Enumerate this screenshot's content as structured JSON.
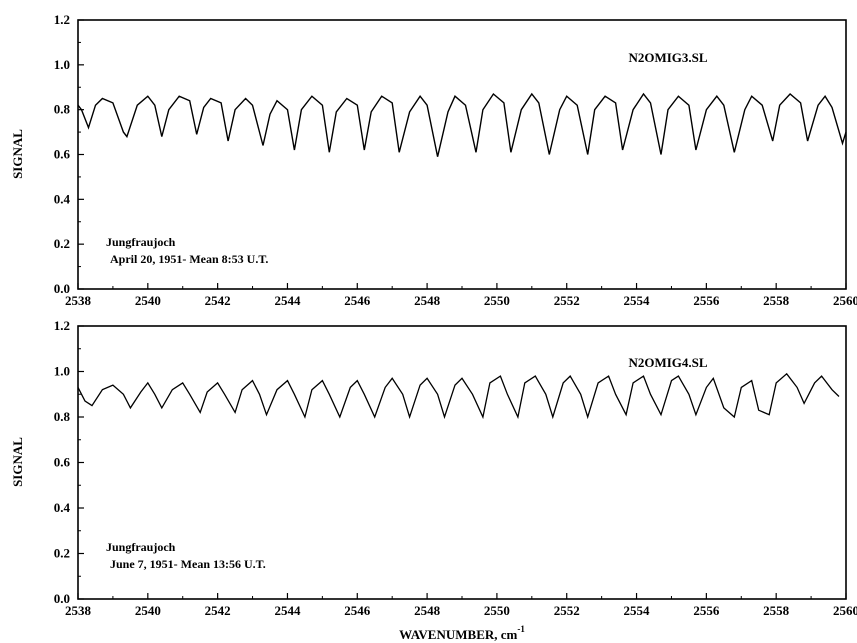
{
  "chart_data": [
    {
      "type": "line",
      "title": "",
      "xlabel": "",
      "ylabel": "SIGNAL",
      "xlim": [
        2538,
        2560
      ],
      "ylim": [
        0.0,
        1.2
      ],
      "x_ticks": [
        "2538",
        "2540",
        "2542",
        "2544",
        "2546",
        "2548",
        "2550",
        "2552",
        "2554",
        "2556",
        "2558",
        "2560"
      ],
      "y_ticks": [
        "0.0",
        "0.2",
        "0.4",
        "0.6",
        "0.8",
        "1.0",
        "1.2"
      ],
      "grid": false,
      "series_label": "N2OMIG3.SL",
      "annotation": [
        "Jungfraujoch",
        "April 20, 1951- Mean 8:53 U.T."
      ],
      "series": [
        {
          "x": [
            2538.0,
            2538.1,
            2538.3,
            2538.5,
            2538.7,
            2539.0,
            2539.3,
            2539.4,
            2539.7,
            2540.0,
            2540.2,
            2540.4,
            2540.6,
            2540.9,
            2541.2,
            2541.4,
            2541.6,
            2541.8,
            2542.1,
            2542.3,
            2542.5,
            2542.8,
            2543.0,
            2543.3,
            2543.5,
            2543.7,
            2544.0,
            2544.2,
            2544.4,
            2544.7,
            2545.0,
            2545.2,
            2545.4,
            2545.7,
            2546.0,
            2546.2,
            2546.4,
            2546.7,
            2547.0,
            2547.2,
            2547.5,
            2547.8,
            2548.0,
            2548.3,
            2548.6,
            2548.8,
            2549.1,
            2549.4,
            2549.6,
            2549.9,
            2550.2,
            2550.4,
            2550.7,
            2551.0,
            2551.2,
            2551.5,
            2551.8,
            2552.0,
            2552.3,
            2552.6,
            2552.8,
            2553.1,
            2553.4,
            2553.6,
            2553.9,
            2554.2,
            2554.4,
            2554.7,
            2554.9,
            2555.2,
            2555.5,
            2555.7,
            2556.0,
            2556.3,
            2556.5,
            2556.8,
            2557.1,
            2557.3,
            2557.6,
            2557.9,
            2558.1,
            2558.4,
            2558.7,
            2558.9,
            2559.2,
            2559.4,
            2559.6,
            2559.9,
            2560.0
          ],
          "y": [
            0.82,
            0.8,
            0.72,
            0.82,
            0.85,
            0.83,
            0.7,
            0.68,
            0.82,
            0.86,
            0.82,
            0.68,
            0.8,
            0.86,
            0.84,
            0.69,
            0.81,
            0.85,
            0.83,
            0.66,
            0.8,
            0.85,
            0.82,
            0.64,
            0.78,
            0.84,
            0.8,
            0.62,
            0.8,
            0.86,
            0.82,
            0.61,
            0.79,
            0.85,
            0.82,
            0.62,
            0.79,
            0.86,
            0.83,
            0.61,
            0.79,
            0.86,
            0.82,
            0.59,
            0.79,
            0.86,
            0.82,
            0.61,
            0.8,
            0.87,
            0.83,
            0.61,
            0.8,
            0.87,
            0.83,
            0.6,
            0.8,
            0.86,
            0.82,
            0.6,
            0.8,
            0.86,
            0.83,
            0.62,
            0.8,
            0.87,
            0.83,
            0.6,
            0.8,
            0.86,
            0.82,
            0.62,
            0.8,
            0.86,
            0.82,
            0.61,
            0.8,
            0.86,
            0.82,
            0.66,
            0.82,
            0.87,
            0.83,
            0.66,
            0.82,
            0.86,
            0.81,
            0.65,
            0.7
          ]
        }
      ]
    },
    {
      "type": "line",
      "title": "",
      "xlabel": "WAVENUMBER, cm",
      "xlabel_superscript": "-1",
      "ylabel": "SIGNAL",
      "xlim": [
        2538,
        2560
      ],
      "ylim": [
        0.0,
        1.2
      ],
      "x_ticks": [
        "2538",
        "2540",
        "2542",
        "2544",
        "2546",
        "2548",
        "2550",
        "2552",
        "2554",
        "2556",
        "2558",
        "2560"
      ],
      "y_ticks": [
        "0.0",
        "0.2",
        "0.4",
        "0.6",
        "0.8",
        "1.0",
        "1.2"
      ],
      "grid": false,
      "series_label": "N2OMIG4.SL",
      "annotation": [
        "Jungfraujoch",
        "June 7, 1951- Mean 13:56 U.T."
      ],
      "series": [
        {
          "x": [
            2538.0,
            2538.2,
            2538.4,
            2538.7,
            2539.0,
            2539.3,
            2539.5,
            2539.8,
            2540.0,
            2540.2,
            2540.4,
            2540.7,
            2541.0,
            2541.2,
            2541.5,
            2541.7,
            2542.0,
            2542.2,
            2542.5,
            2542.7,
            2543.0,
            2543.2,
            2543.4,
            2543.7,
            2544.0,
            2544.2,
            2544.5,
            2544.7,
            2545.0,
            2545.2,
            2545.5,
            2545.8,
            2546.0,
            2546.2,
            2546.5,
            2546.8,
            2547.0,
            2547.3,
            2547.5,
            2547.8,
            2548.0,
            2548.3,
            2548.5,
            2548.8,
            2549.0,
            2549.3,
            2549.6,
            2549.8,
            2550.1,
            2550.3,
            2550.6,
            2550.8,
            2551.1,
            2551.4,
            2551.6,
            2551.9,
            2552.1,
            2552.4,
            2552.6,
            2552.9,
            2553.2,
            2553.4,
            2553.7,
            2553.9,
            2554.2,
            2554.4,
            2554.7,
            2555.0,
            2555.2,
            2555.5,
            2555.7,
            2556.0,
            2556.2,
            2556.5,
            2556.8,
            2557.0,
            2557.3,
            2557.5,
            2557.8,
            2558.0,
            2558.3,
            2558.6,
            2558.8,
            2559.1,
            2559.3,
            2559.6,
            2559.8
          ],
          "y": [
            0.93,
            0.87,
            0.85,
            0.92,
            0.94,
            0.9,
            0.84,
            0.91,
            0.95,
            0.9,
            0.84,
            0.92,
            0.95,
            0.9,
            0.82,
            0.91,
            0.95,
            0.9,
            0.82,
            0.92,
            0.96,
            0.9,
            0.81,
            0.92,
            0.96,
            0.9,
            0.8,
            0.92,
            0.96,
            0.9,
            0.8,
            0.93,
            0.96,
            0.9,
            0.8,
            0.93,
            0.97,
            0.9,
            0.8,
            0.94,
            0.97,
            0.9,
            0.8,
            0.94,
            0.97,
            0.9,
            0.8,
            0.95,
            0.98,
            0.9,
            0.8,
            0.95,
            0.98,
            0.9,
            0.8,
            0.95,
            0.98,
            0.9,
            0.8,
            0.95,
            0.98,
            0.9,
            0.81,
            0.95,
            0.98,
            0.9,
            0.81,
            0.96,
            0.98,
            0.9,
            0.81,
            0.93,
            0.97,
            0.84,
            0.8,
            0.93,
            0.96,
            0.83,
            0.81,
            0.95,
            0.99,
            0.93,
            0.86,
            0.95,
            0.98,
            0.92,
            0.89
          ]
        }
      ]
    }
  ]
}
